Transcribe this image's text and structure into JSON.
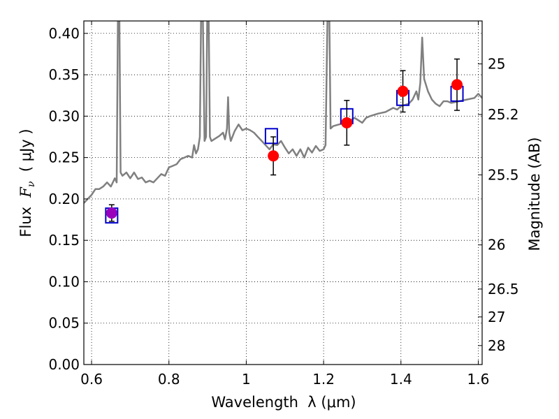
{
  "chart_data": {
    "type": "line",
    "xlabel": "Wavelength  λ (μm)",
    "ylabel": "Flux  F_ν  ( μJy )",
    "y2label": "Magnitude (AB)",
    "xlim": [
      0.58,
      1.61
    ],
    "ylim": [
      0.0,
      0.415
    ],
    "grid": true,
    "x_ticks": [
      0.6,
      0.8,
      1.0,
      1.2,
      1.4,
      1.6
    ],
    "x_tick_labels": [
      "0.6",
      "0.8",
      "1",
      "1.2",
      "1.4",
      "1.6"
    ],
    "y_ticks": [
      0.0,
      0.05,
      0.1,
      0.15,
      0.2,
      0.25,
      0.3,
      0.35,
      0.4
    ],
    "y_tick_labels": [
      "0.00",
      "0.05",
      "0.10",
      "0.15",
      "0.20",
      "0.25",
      "0.30",
      "0.35",
      "0.40"
    ],
    "y2_ticks": [
      {
        "label": "25",
        "flux": 0.3631
      },
      {
        "label": "25.2",
        "flux": 0.302
      },
      {
        "label": "25.5",
        "flux": 0.2291
      },
      {
        "label": "26",
        "flux": 0.1445
      },
      {
        "label": "26.5",
        "flux": 0.0912
      },
      {
        "label": "27",
        "flux": 0.0575
      },
      {
        "label": "28",
        "flux": 0.0229
      }
    ],
    "series": [
      {
        "style": "line",
        "color": "#808080",
        "points": [
          [
            0.58,
            0.195
          ],
          [
            0.6,
            0.205
          ],
          [
            0.61,
            0.212
          ],
          [
            0.62,
            0.212
          ],
          [
            0.63,
            0.215
          ],
          [
            0.64,
            0.22
          ],
          [
            0.65,
            0.215
          ],
          [
            0.66,
            0.225
          ],
          [
            0.665,
            0.22
          ],
          [
            0.668,
            0.415
          ],
          [
            0.672,
            0.415
          ],
          [
            0.675,
            0.232
          ],
          [
            0.68,
            0.228
          ],
          [
            0.69,
            0.232
          ],
          [
            0.7,
            0.225
          ],
          [
            0.71,
            0.232
          ],
          [
            0.72,
            0.224
          ],
          [
            0.73,
            0.226
          ],
          [
            0.74,
            0.22
          ],
          [
            0.75,
            0.222
          ],
          [
            0.76,
            0.22
          ],
          [
            0.77,
            0.225
          ],
          [
            0.78,
            0.23
          ],
          [
            0.79,
            0.228
          ],
          [
            0.8,
            0.238
          ],
          [
            0.81,
            0.24
          ],
          [
            0.82,
            0.242
          ],
          [
            0.83,
            0.248
          ],
          [
            0.84,
            0.25
          ],
          [
            0.85,
            0.252
          ],
          [
            0.86,
            0.25
          ],
          [
            0.865,
            0.265
          ],
          [
            0.87,
            0.255
          ],
          [
            0.875,
            0.26
          ],
          [
            0.88,
            0.275
          ],
          [
            0.883,
            0.415
          ],
          [
            0.888,
            0.415
          ],
          [
            0.892,
            0.27
          ],
          [
            0.896,
            0.275
          ],
          [
            0.899,
            0.415
          ],
          [
            0.903,
            0.415
          ],
          [
            0.906,
            0.275
          ],
          [
            0.91,
            0.27
          ],
          [
            0.92,
            0.273
          ],
          [
            0.93,
            0.276
          ],
          [
            0.94,
            0.28
          ],
          [
            0.945,
            0.272
          ],
          [
            0.95,
            0.285
          ],
          [
            0.953,
            0.323
          ],
          [
            0.956,
            0.28
          ],
          [
            0.96,
            0.27
          ],
          [
            0.97,
            0.282
          ],
          [
            0.98,
            0.29
          ],
          [
            0.99,
            0.283
          ],
          [
            1.0,
            0.285
          ],
          [
            1.01,
            0.283
          ],
          [
            1.02,
            0.28
          ],
          [
            1.03,
            0.275
          ],
          [
            1.04,
            0.27
          ],
          [
            1.05,
            0.265
          ],
          [
            1.06,
            0.26
          ],
          [
            1.07,
            0.266
          ],
          [
            1.08,
            0.265
          ],
          [
            1.09,
            0.27
          ],
          [
            1.1,
            0.262
          ],
          [
            1.11,
            0.255
          ],
          [
            1.12,
            0.26
          ],
          [
            1.13,
            0.252
          ],
          [
            1.14,
            0.26
          ],
          [
            1.15,
            0.25
          ],
          [
            1.16,
            0.262
          ],
          [
            1.17,
            0.256
          ],
          [
            1.18,
            0.264
          ],
          [
            1.19,
            0.258
          ],
          [
            1.2,
            0.26
          ],
          [
            1.205,
            0.265
          ],
          [
            1.21,
            0.415
          ],
          [
            1.215,
            0.415
          ],
          [
            1.218,
            0.285
          ],
          [
            1.225,
            0.288
          ],
          [
            1.24,
            0.29
          ],
          [
            1.26,
            0.292
          ],
          [
            1.28,
            0.298
          ],
          [
            1.3,
            0.292
          ],
          [
            1.31,
            0.298
          ],
          [
            1.32,
            0.3
          ],
          [
            1.34,
            0.303
          ],
          [
            1.36,
            0.305
          ],
          [
            1.38,
            0.31
          ],
          [
            1.39,
            0.308
          ],
          [
            1.4,
            0.312
          ],
          [
            1.42,
            0.315
          ],
          [
            1.43,
            0.32
          ],
          [
            1.44,
            0.33
          ],
          [
            1.445,
            0.32
          ],
          [
            1.45,
            0.34
          ],
          [
            1.455,
            0.395
          ],
          [
            1.46,
            0.345
          ],
          [
            1.47,
            0.33
          ],
          [
            1.48,
            0.32
          ],
          [
            1.49,
            0.315
          ],
          [
            1.5,
            0.312
          ],
          [
            1.51,
            0.318
          ],
          [
            1.52,
            0.318
          ],
          [
            1.53,
            0.316
          ],
          [
            1.55,
            0.318
          ],
          [
            1.57,
            0.32
          ],
          [
            1.59,
            0.322
          ],
          [
            1.6,
            0.327
          ],
          [
            1.61,
            0.322
          ]
        ]
      },
      {
        "style": "square",
        "color": "#0000cc",
        "points": [
          [
            0.652,
            0.18
          ],
          [
            1.065,
            0.276
          ],
          [
            1.26,
            0.3
          ],
          [
            1.405,
            0.322
          ],
          [
            1.545,
            0.327
          ]
        ]
      },
      {
        "style": "circle-errorbar",
        "color": "#ff0000",
        "points": [
          {
            "x": 0.652,
            "y": 0.183,
            "yerr": 0.01,
            "color": "#9900bb"
          },
          {
            "x": 1.07,
            "y": 0.252,
            "yerr": 0.023
          },
          {
            "x": 1.26,
            "y": 0.292,
            "yerr": 0.027
          },
          {
            "x": 1.405,
            "y": 0.33,
            "yerr": 0.025
          },
          {
            "x": 1.545,
            "y": 0.338,
            "yerr": 0.031
          }
        ]
      }
    ]
  }
}
